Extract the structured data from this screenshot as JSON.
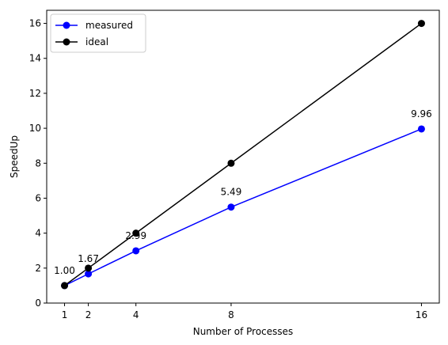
{
  "chart_data": {
    "type": "line",
    "title": "",
    "xlabel": "Number of Processes",
    "ylabel": "SpeedUp",
    "xlim": [
      0.25,
      16.75
    ],
    "ylim": [
      0,
      16.75
    ],
    "xticks": [
      1,
      2,
      4,
      8,
      16
    ],
    "xtick_labels": [
      "1",
      "2",
      "4",
      "8",
      "16"
    ],
    "yticks": [
      0,
      2,
      4,
      6,
      8,
      10,
      12,
      14,
      16
    ],
    "ytick_labels": [
      "0",
      "2",
      "4",
      "6",
      "8",
      "10",
      "12",
      "14",
      "16"
    ],
    "grid": false,
    "legend_position": "top-left",
    "series": [
      {
        "name": "measured",
        "color": "#0000ff",
        "marker": "circle",
        "x": [
          1,
          2,
          4,
          8,
          16
        ],
        "y": [
          1.0,
          1.67,
          2.99,
          5.49,
          9.96
        ],
        "labels": [
          "1.00",
          "1.67",
          "2.99",
          "5.49",
          "9.96"
        ]
      },
      {
        "name": "ideal",
        "color": "#000000",
        "marker": "circle",
        "x": [
          1,
          2,
          4,
          8,
          16
        ],
        "y": [
          1,
          2,
          4,
          8,
          16
        ]
      }
    ]
  }
}
